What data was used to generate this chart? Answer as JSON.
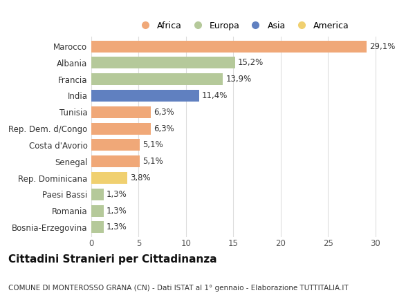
{
  "countries": [
    "Marocco",
    "Albania",
    "Francia",
    "India",
    "Tunisia",
    "Rep. Dem. d/Congo",
    "Costa d'Avorio",
    "Senegal",
    "Rep. Dominicana",
    "Paesi Bassi",
    "Romania",
    "Bosnia-Erzegovina"
  ],
  "values": [
    29.1,
    15.2,
    13.9,
    11.4,
    6.3,
    6.3,
    5.1,
    5.1,
    3.8,
    1.3,
    1.3,
    1.3
  ],
  "labels": [
    "29,1%",
    "15,2%",
    "13,9%",
    "11,4%",
    "6,3%",
    "6,3%",
    "5,1%",
    "5,1%",
    "3,8%",
    "1,3%",
    "1,3%",
    "1,3%"
  ],
  "continents": [
    "Africa",
    "Europa",
    "Europa",
    "Asia",
    "Africa",
    "Africa",
    "Africa",
    "Africa",
    "America",
    "Europa",
    "Europa",
    "Europa"
  ],
  "continent_colors": {
    "Africa": "#F0A878",
    "Europa": "#B5C99A",
    "Asia": "#6080C0",
    "America": "#F0D070"
  },
  "legend_order": [
    "Africa",
    "Europa",
    "Asia",
    "America"
  ],
  "title": "Cittadini Stranieri per Cittadinanza",
  "subtitle": "COMUNE DI MONTEROSSO GRANA (CN) - Dati ISTAT al 1° gennaio - Elaborazione TUTTITALIA.IT",
  "xlim": [
    0,
    32
  ],
  "xticks": [
    0,
    5,
    10,
    15,
    20,
    25,
    30
  ],
  "background_color": "#ffffff",
  "grid_color": "#dddddd",
  "bar_height": 0.72,
  "label_fontsize": 8.5,
  "tick_fontsize": 8.5,
  "title_fontsize": 11,
  "subtitle_fontsize": 7.5
}
